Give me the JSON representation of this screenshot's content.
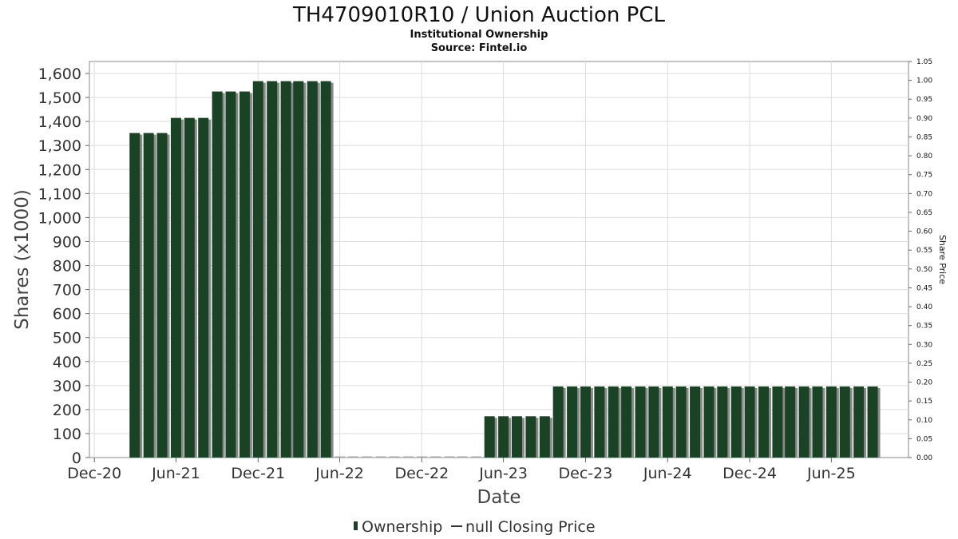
{
  "title": "TH4709010R10 / Union Auction PCL",
  "subtitle": "Institutional Ownership",
  "source": "Source: Fintel.io",
  "colors": {
    "bar": "#1a4225",
    "bar_shadow": "#8a8a8a",
    "grid": "#dddddd",
    "axis": "#888888"
  },
  "legend": {
    "ownership_label": "Ownership",
    "price_label": "null Closing Price"
  },
  "chart_data": {
    "type": "bar",
    "title": "TH4709010R10 / Union Auction PCL",
    "xlabel": "Date",
    "ylabel": "Shares (x1000)",
    "y2label": "Share Price",
    "ylim": [
      0,
      1650
    ],
    "y2lim": [
      0,
      1.05
    ],
    "grid": true,
    "legend_position": "bottom",
    "yticks": [
      0,
      100,
      200,
      300,
      400,
      500,
      600,
      700,
      800,
      900,
      1000,
      1100,
      1200,
      1300,
      1400,
      1500,
      1600
    ],
    "ytick_labels": [
      "0",
      "100",
      "200",
      "300",
      "400",
      "500",
      "600",
      "700",
      "800",
      "900",
      "1,000",
      "1,100",
      "1,200",
      "1,300",
      "1,400",
      "1,500",
      "1,600"
    ],
    "y2ticks": [
      "0.00",
      "0.05",
      "0.10",
      "0.15",
      "0.20",
      "0.25",
      "0.30",
      "0.35",
      "0.40",
      "0.45",
      "0.50",
      "0.55",
      "0.60",
      "0.65",
      "0.70",
      "0.75",
      "0.80",
      "0.85",
      "0.90",
      "0.95",
      "1.00",
      "1.05"
    ],
    "xticks": [
      {
        "label": "Dec-20",
        "date": "2020-12-01"
      },
      {
        "label": "Jun-21",
        "date": "2021-06-01"
      },
      {
        "label": "Dec-21",
        "date": "2021-12-01"
      },
      {
        "label": "Jun-22",
        "date": "2022-06-01"
      },
      {
        "label": "Dec-22",
        "date": "2022-12-01"
      },
      {
        "label": "Jun-23",
        "date": "2023-06-01"
      },
      {
        "label": "Dec-23",
        "date": "2023-12-01"
      },
      {
        "label": "Jun-24",
        "date": "2024-06-01"
      },
      {
        "label": "Dec-24",
        "date": "2024-12-01"
      },
      {
        "label": "Jun-25",
        "date": "2025-06-01"
      }
    ],
    "x_range": [
      "2020-11-20",
      "2025-11-20"
    ],
    "series": [
      {
        "name": "Ownership",
        "points": [
          {
            "date": "2021-03-01",
            "value": 1352
          },
          {
            "date": "2021-04-01",
            "value": 1352
          },
          {
            "date": "2021-05-01",
            "value": 1352
          },
          {
            "date": "2021-06-01",
            "value": 1415
          },
          {
            "date": "2021-07-01",
            "value": 1415
          },
          {
            "date": "2021-08-01",
            "value": 1415
          },
          {
            "date": "2021-09-01",
            "value": 1525
          },
          {
            "date": "2021-10-01",
            "value": 1525
          },
          {
            "date": "2021-11-01",
            "value": 1525
          },
          {
            "date": "2021-12-01",
            "value": 1568
          },
          {
            "date": "2022-01-01",
            "value": 1568
          },
          {
            "date": "2022-02-01",
            "value": 1568
          },
          {
            "date": "2022-03-01",
            "value": 1568
          },
          {
            "date": "2022-04-01",
            "value": 1568
          },
          {
            "date": "2022-05-01",
            "value": 1568
          },
          {
            "date": "2022-06-01",
            "value": 0
          },
          {
            "date": "2022-07-01",
            "value": 0
          },
          {
            "date": "2022-08-01",
            "value": 0
          },
          {
            "date": "2022-09-01",
            "value": 0
          },
          {
            "date": "2022-10-01",
            "value": 0
          },
          {
            "date": "2022-11-01",
            "value": 0
          },
          {
            "date": "2022-12-01",
            "value": 0
          },
          {
            "date": "2023-01-01",
            "value": 0
          },
          {
            "date": "2023-02-01",
            "value": 0
          },
          {
            "date": "2023-03-01",
            "value": 0
          },
          {
            "date": "2023-04-01",
            "value": 0
          },
          {
            "date": "2023-05-01",
            "value": 172
          },
          {
            "date": "2023-06-01",
            "value": 172
          },
          {
            "date": "2023-07-01",
            "value": 172
          },
          {
            "date": "2023-08-01",
            "value": 172
          },
          {
            "date": "2023-09-01",
            "value": 172
          },
          {
            "date": "2023-10-01",
            "value": 296
          },
          {
            "date": "2023-11-01",
            "value": 296
          },
          {
            "date": "2023-12-01",
            "value": 296
          },
          {
            "date": "2024-01-01",
            "value": 296
          },
          {
            "date": "2024-02-01",
            "value": 296
          },
          {
            "date": "2024-03-01",
            "value": 296
          },
          {
            "date": "2024-04-01",
            "value": 296
          },
          {
            "date": "2024-05-01",
            "value": 296
          },
          {
            "date": "2024-06-01",
            "value": 296
          },
          {
            "date": "2024-07-01",
            "value": 296
          },
          {
            "date": "2024-08-01",
            "value": 296
          },
          {
            "date": "2024-09-01",
            "value": 296
          },
          {
            "date": "2024-10-01",
            "value": 296
          },
          {
            "date": "2024-11-01",
            "value": 296
          },
          {
            "date": "2024-12-01",
            "value": 296
          },
          {
            "date": "2025-01-01",
            "value": 296
          },
          {
            "date": "2025-02-01",
            "value": 296
          },
          {
            "date": "2025-03-01",
            "value": 296
          },
          {
            "date": "2025-04-01",
            "value": 296
          },
          {
            "date": "2025-05-01",
            "value": 296
          },
          {
            "date": "2025-06-01",
            "value": 296
          },
          {
            "date": "2025-07-01",
            "value": 296
          },
          {
            "date": "2025-08-01",
            "value": 296
          },
          {
            "date": "2025-09-01",
            "value": 296
          }
        ]
      },
      {
        "name": "null Closing Price",
        "points": []
      }
    ]
  }
}
